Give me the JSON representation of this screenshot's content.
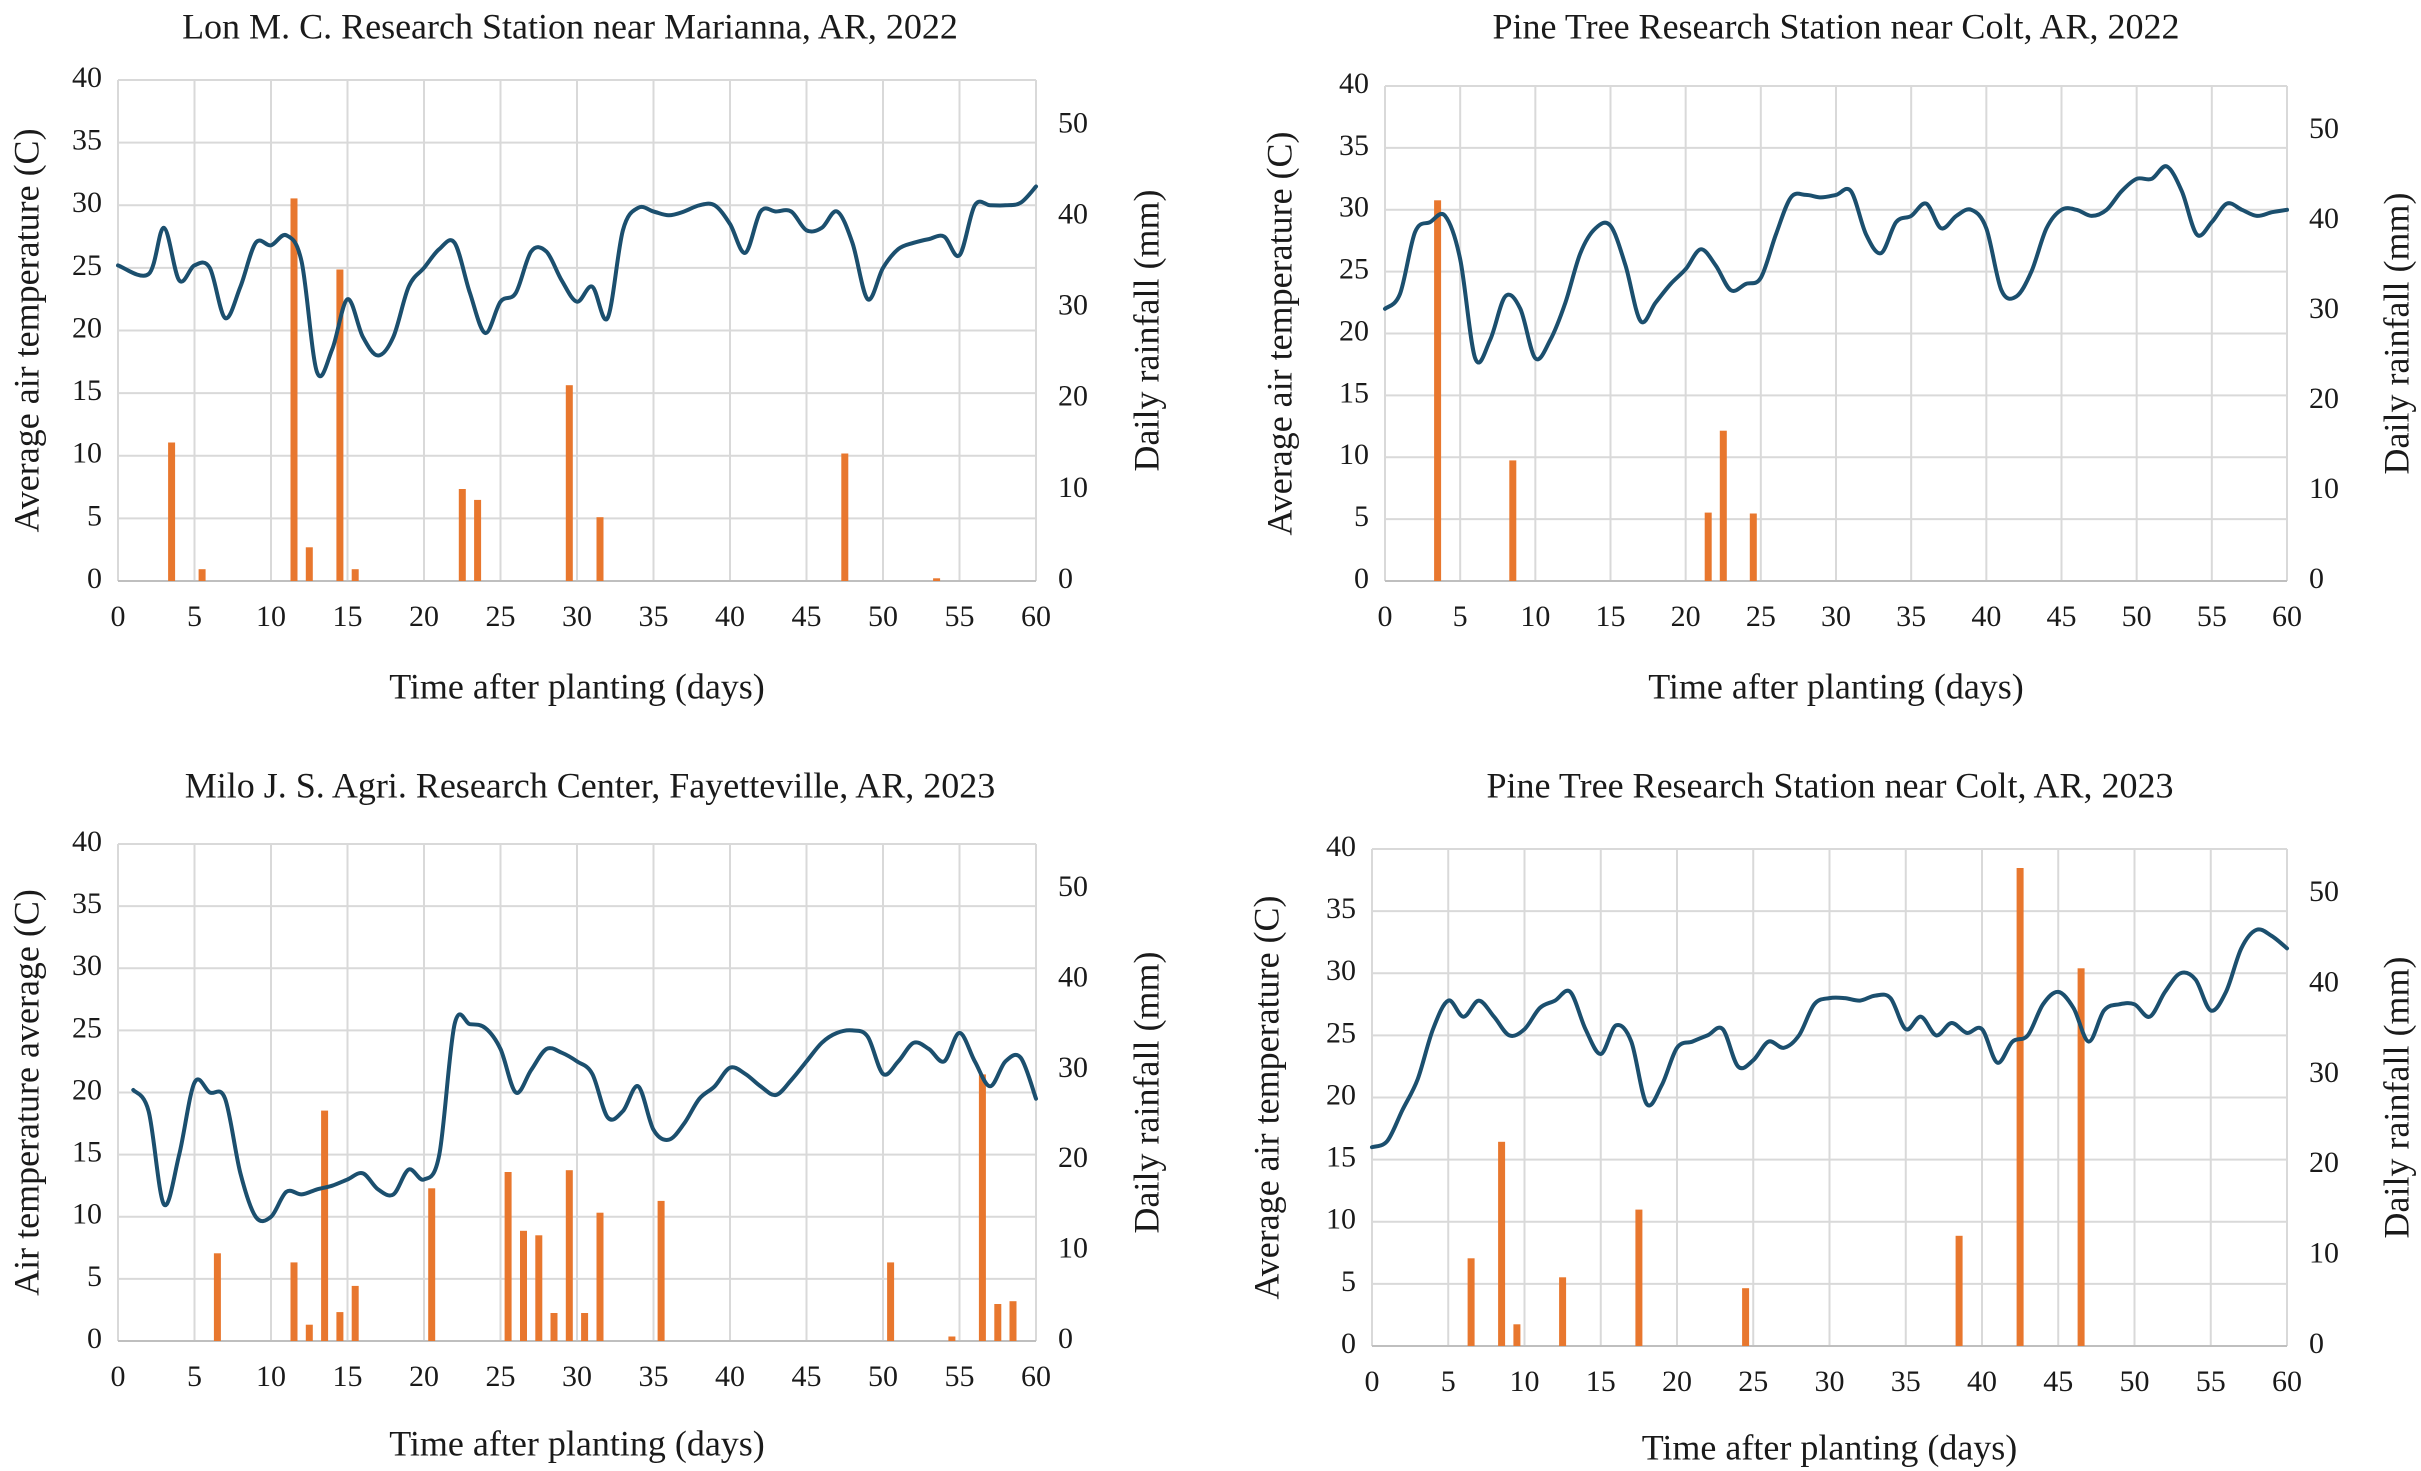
{
  "colors": {
    "temperature_line": "#1b4f6e",
    "rainfall_bar": "#e8772e",
    "grid": "#d9d9d9",
    "axis": "#bfbfbf",
    "text": "#1a1a1a"
  },
  "chart_data": [
    {
      "type": "bar+line",
      "title": "Lon M. C. Research Station near Marianna, AR, 2022",
      "xlabel": "Time after planting (days)",
      "ylabel": "Average air temperature (C)",
      "y2label": "Daily rainfall (mm)",
      "xlim": [
        0,
        60
      ],
      "ylim": [
        0,
        40
      ],
      "y2lim": [
        0,
        55
      ],
      "xticks": [
        "0",
        "5",
        "10",
        "15",
        "20",
        "25",
        "30",
        "35",
        "40",
        "45",
        "50",
        "55",
        "60"
      ],
      "yticks": [
        "0",
        "5",
        "10",
        "15",
        "20",
        "25",
        "30",
        "35",
        "40"
      ],
      "y2ticks": [
        "0",
        "10",
        "20",
        "30",
        "40",
        "50"
      ],
      "series": [
        {
          "name": "Average air temperature",
          "axis": "left",
          "kind": "line",
          "x": [
            0,
            2,
            3,
            4,
            5,
            6,
            7,
            8,
            9,
            10,
            11,
            12,
            13,
            14,
            15,
            16,
            17,
            18,
            19,
            20,
            21,
            22,
            23,
            24,
            25,
            26,
            27,
            28,
            29,
            30,
            31,
            32,
            33,
            34,
            35,
            36,
            37,
            38,
            39,
            40,
            41,
            42,
            43,
            44,
            45,
            46,
            47,
            48,
            49,
            50,
            51,
            52,
            53,
            54,
            55,
            56,
            57,
            58,
            59,
            60
          ],
          "y": [
            25.2,
            24.5,
            28.2,
            24,
            25.2,
            25,
            21,
            23.5,
            27,
            26.8,
            27.6,
            25.5,
            16.7,
            18.5,
            22.5,
            19.5,
            18,
            19.5,
            23.5,
            25,
            26.5,
            27,
            23,
            19.8,
            22.3,
            23,
            26.3,
            26.3,
            24,
            22.3,
            23.5,
            21,
            28,
            29.8,
            29.5,
            29.2,
            29.5,
            30,
            30,
            28.5,
            26.2,
            29.5,
            29.5,
            29.5,
            28,
            28.2,
            29.5,
            27,
            22.5,
            25,
            26.5,
            27,
            27.3,
            27.5,
            26,
            30,
            30,
            30,
            30.2,
            31.5
          ]
        },
        {
          "name": "Daily rainfall",
          "axis": "right",
          "kind": "bar",
          "x": [
            3.5,
            5.5,
            11.5,
            12.5,
            14.5,
            15.5,
            22.5,
            23.5,
            29.5,
            31.5,
            47.5,
            53.5
          ],
          "y": [
            15.2,
            1.3,
            42,
            3.7,
            34.2,
            1.3,
            10.1,
            8.9,
            21.5,
            7,
            14,
            0.3
          ]
        }
      ]
    },
    {
      "type": "bar+line",
      "title": "Pine Tree Research Station near Colt, AR, 2022",
      "xlabel": "Time after planting (days)",
      "ylabel": "Average air temperature (C)",
      "y2label": "Daily rainfall (mm)",
      "xlim": [
        0,
        60
      ],
      "ylim": [
        0,
        40
      ],
      "y2lim": [
        0,
        55
      ],
      "xticks": [
        "0",
        "5",
        "10",
        "15",
        "20",
        "25",
        "30",
        "35",
        "40",
        "45",
        "50",
        "55",
        "60"
      ],
      "yticks": [
        "0",
        "5",
        "10",
        "15",
        "20",
        "25",
        "30",
        "35",
        "40"
      ],
      "y2ticks": [
        "0",
        "10",
        "20",
        "30",
        "40",
        "50"
      ],
      "series": [
        {
          "name": "Average air temperature",
          "axis": "left",
          "kind": "line",
          "x": [
            0,
            1,
            2,
            3,
            4,
            5,
            6,
            7,
            8,
            9,
            10,
            11,
            12,
            13,
            14,
            15,
            16,
            17,
            18,
            19,
            20,
            21,
            22,
            23,
            24,
            25,
            26,
            27,
            28,
            29,
            30,
            31,
            32,
            33,
            34,
            35,
            36,
            37,
            38,
            39,
            40,
            41,
            42,
            43,
            44,
            45,
            46,
            47,
            48,
            49,
            50,
            51,
            52,
            53,
            54,
            55,
            56,
            57,
            58,
            59,
            60
          ],
          "y": [
            22,
            23.2,
            28.2,
            29,
            29.5,
            26,
            18,
            19.5,
            23,
            22,
            18,
            19.5,
            22.5,
            26.5,
            28.5,
            28.7,
            25.5,
            21,
            22.5,
            24,
            25.2,
            26.8,
            25.5,
            23.5,
            24,
            24.5,
            28,
            31,
            31.2,
            31,
            31.2,
            31.5,
            28,
            26.5,
            29,
            29.5,
            30.5,
            28.5,
            29.5,
            30,
            28.5,
            23.5,
            23,
            25,
            28.5,
            30,
            30,
            29.5,
            30,
            31.5,
            32.5,
            32.5,
            33.5,
            31.5,
            28,
            29,
            30.5,
            30,
            29.5,
            29.8,
            30
          ]
        },
        {
          "name": "Daily rainfall",
          "axis": "right",
          "kind": "bar",
          "x": [
            3.5,
            8.5,
            21.5,
            22.5,
            24.5
          ],
          "y": [
            42.3,
            13.4,
            7.6,
            16.7,
            7.5
          ]
        }
      ]
    },
    {
      "type": "bar+line",
      "title": "Milo J. S. Agri. Research Center, Fayetteville, AR, 2023",
      "xlabel": "Time after planting (days)",
      "ylabel": "Air temperature average (C)",
      "y2label": "Daily rainfall (mm)",
      "xlim": [
        0,
        60
      ],
      "ylim": [
        0,
        40
      ],
      "y2lim": [
        0,
        55
      ],
      "xticks": [
        "0",
        "5",
        "10",
        "15",
        "20",
        "25",
        "30",
        "35",
        "40",
        "45",
        "50",
        "55",
        "60"
      ],
      "yticks": [
        "0",
        "5",
        "10",
        "15",
        "20",
        "25",
        "30",
        "35",
        "40"
      ],
      "y2ticks": [
        "0",
        "10",
        "20",
        "30",
        "40",
        "50"
      ],
      "series": [
        {
          "name": "Air temperature average",
          "axis": "left",
          "kind": "line",
          "x": [
            1,
            2,
            3,
            4,
            5,
            6,
            7,
            8,
            9,
            10,
            11,
            12,
            13,
            14,
            15,
            16,
            17,
            18,
            19,
            20,
            21,
            22,
            23,
            24,
            25,
            26,
            27,
            28,
            29,
            30,
            31,
            32,
            33,
            34,
            35,
            36,
            37,
            38,
            39,
            40,
            41,
            42,
            43,
            44,
            45,
            46,
            47,
            48,
            49,
            50,
            51,
            52,
            53,
            54,
            55,
            56,
            57,
            58,
            59,
            60
          ],
          "y": [
            20.2,
            18.5,
            11,
            15,
            20.8,
            20,
            19.5,
            13.5,
            10,
            10,
            12,
            11.8,
            12.2,
            12.5,
            13,
            13.5,
            12.2,
            11.8,
            13.8,
            13,
            15,
            25.5,
            25.5,
            25.2,
            23.5,
            20,
            21.8,
            23.5,
            23.2,
            22.5,
            21.5,
            18,
            18.5,
            20.5,
            17,
            16.2,
            17.5,
            19.5,
            20.5,
            22,
            21.5,
            20.5,
            19.8,
            21,
            22.5,
            24,
            24.8,
            25,
            24.5,
            21.5,
            22.5,
            24,
            23.5,
            22.5,
            24.8,
            22.5,
            20.5,
            22.5,
            22.8,
            19.5
          ]
        },
        {
          "name": "Daily rainfall",
          "axis": "right",
          "kind": "bar",
          "x": [
            6.5,
            11.5,
            12.5,
            13.5,
            14.5,
            15.5,
            20.5,
            25.5,
            26.5,
            27.5,
            28.5,
            29.5,
            30.5,
            31.5,
            35.5,
            50.5,
            54.5,
            56.5,
            57.5,
            58.5
          ],
          "y": [
            9.7,
            8.7,
            1.8,
            25.5,
            3.2,
            6.1,
            16.9,
            18.7,
            12.2,
            11.7,
            3.1,
            18.9,
            3.1,
            14.2,
            15.5,
            8.7,
            0.5,
            29.5,
            4.1,
            4.4
          ]
        }
      ]
    },
    {
      "type": "bar+line",
      "title": "Pine Tree Research Station near Colt, AR, 2023",
      "xlabel": "Time after planting (days)",
      "ylabel": "Average air temperature (C)",
      "y2label": "Daily rainfall (mm)",
      "xlim": [
        0,
        60
      ],
      "ylim": [
        0,
        40
      ],
      "y2lim": [
        0,
        55
      ],
      "xticks": [
        "0",
        "5",
        "10",
        "15",
        "20",
        "25",
        "30",
        "35",
        "40",
        "45",
        "50",
        "55",
        "60"
      ],
      "yticks": [
        "0",
        "5",
        "10",
        "15",
        "20",
        "25",
        "30",
        "35",
        "40"
      ],
      "y2ticks": [
        "0",
        "10",
        "20",
        "30",
        "40",
        "50"
      ],
      "series": [
        {
          "name": "Average air temperature",
          "axis": "left",
          "kind": "line",
          "x": [
            0,
            1,
            2,
            3,
            4,
            5,
            6,
            7,
            8,
            9,
            10,
            11,
            12,
            13,
            14,
            15,
            16,
            17,
            18,
            19,
            20,
            21,
            22,
            23,
            24,
            25,
            26,
            27,
            28,
            29,
            30,
            31,
            32,
            33,
            34,
            35,
            36,
            37,
            38,
            39,
            40,
            41,
            42,
            43,
            44,
            45,
            46,
            47,
            48,
            49,
            50,
            51,
            52,
            53,
            54,
            55,
            56,
            57,
            58,
            59,
            60
          ],
          "y": [
            16,
            16.5,
            19,
            21.5,
            25.5,
            27.8,
            26.5,
            27.8,
            26.5,
            25,
            25.5,
            27.2,
            27.8,
            28.5,
            25.5,
            23.5,
            25.8,
            24.5,
            19.5,
            21,
            24,
            24.5,
            25,
            25.5,
            22.5,
            23,
            24.5,
            24,
            25,
            27.5,
            28,
            28,
            27.8,
            28.2,
            28,
            25.5,
            26.5,
            25,
            26,
            25.2,
            25.5,
            22.8,
            24.5,
            25,
            27.5,
            28.5,
            27.2,
            24.5,
            27,
            27.5,
            27.5,
            26.5,
            28.5,
            30,
            29.5,
            27,
            28.5,
            32,
            33.5,
            33,
            32
          ]
        },
        {
          "name": "Daily rainfall",
          "axis": "right",
          "kind": "bar",
          "x": [
            6.5,
            8.5,
            9.5,
            12.5,
            17.5,
            24.5,
            38.5,
            42.5,
            46.5
          ],
          "y": [
            9.7,
            22.6,
            2.4,
            7.6,
            15.1,
            6.4,
            12.2,
            52.9,
            41.8
          ]
        }
      ]
    }
  ]
}
